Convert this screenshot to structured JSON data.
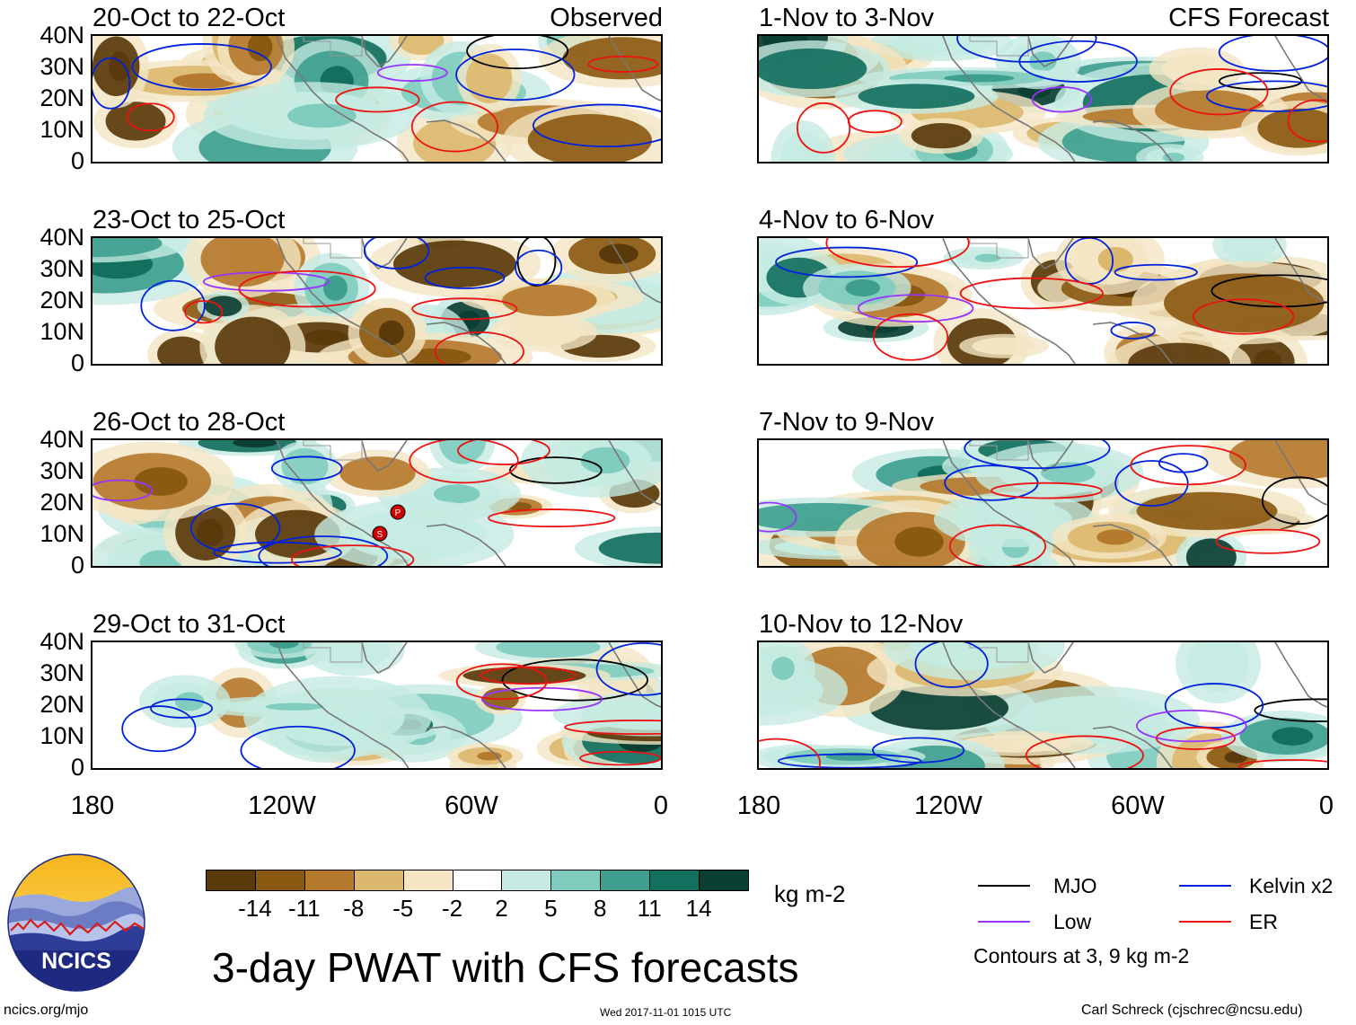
{
  "header": {
    "left_tag": "Observed",
    "right_tag": "CFS Forecast"
  },
  "panels": {
    "left": [
      {
        "period": "20-Oct to 22-Oct"
      },
      {
        "period": "23-Oct to 25-Oct"
      },
      {
        "period": "26-Oct to 28-Oct"
      },
      {
        "period": "29-Oct to 31-Oct"
      }
    ],
    "right": [
      {
        "period": "1-Nov to 3-Nov"
      },
      {
        "period": "4-Nov to 6-Nov"
      },
      {
        "period": "7-Nov to 9-Nov"
      },
      {
        "period": "10-Nov to 12-Nov"
      }
    ]
  },
  "axes": {
    "lat_labels": [
      "40N",
      "30N",
      "20N",
      "10N",
      "0"
    ],
    "lon_labels": [
      "180",
      "120W",
      "60W",
      "0"
    ]
  },
  "storm_markers": [
    "P",
    "S"
  ],
  "colorbar": {
    "unit": "kg m-2",
    "ticks": [
      "-14",
      "-11",
      "-8",
      "-5",
      "-2",
      "2",
      "5",
      "8",
      "11",
      "14"
    ],
    "colors": [
      "#5a3a0b",
      "#8b5a12",
      "#b57a2e",
      "#dcb86f",
      "#f4e6c4",
      "#ffffff",
      "#c5ebe2",
      "#80cdbf",
      "#3f9f8f",
      "#13705f",
      "#0b3f33"
    ]
  },
  "legend": {
    "items": [
      {
        "label": "MJO",
        "color": "#000000"
      },
      {
        "label": "Kelvin x2",
        "color": "#0022dd"
      },
      {
        "label": "Low",
        "color": "#9933ff"
      },
      {
        "label": "ER",
        "color": "#ee1111"
      }
    ],
    "contour_note": "Contours at 3, 9 kg m-2"
  },
  "logo": {
    "text": "NCICS"
  },
  "footer": {
    "main_title": "3-day PWAT with CFS forecasts",
    "site": "ncics.org/mjo",
    "timestamp": "Wed 2017-11-01 1015 UTC",
    "credit": "Carl Schreck (cjschrec@ncsu.edu)"
  }
}
